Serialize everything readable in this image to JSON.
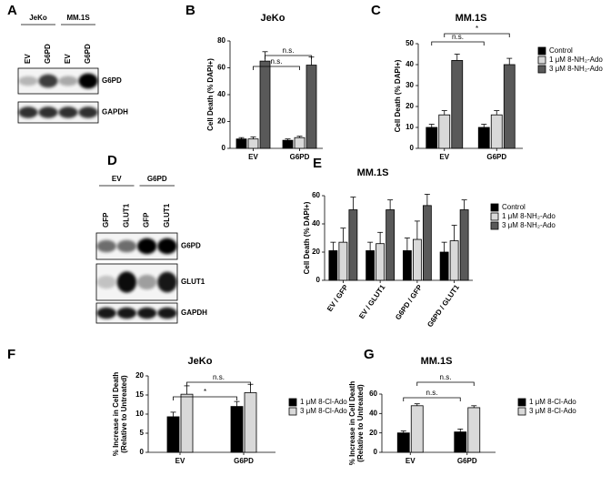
{
  "chart_data": [
    {
      "panel": "B",
      "type": "bar",
      "title": "JeKo",
      "ylabel": "Cell Death (% DAPI+)",
      "categories": [
        "EV",
        "G6PD"
      ],
      "series": [
        {
          "name": "Control",
          "color": "#000000",
          "values": [
            7,
            6
          ],
          "errors": [
            1,
            1
          ]
        },
        {
          "name": "1 μM 8-NH₂-Ado",
          "color": "#d9d9d9",
          "values": [
            7,
            8
          ],
          "errors": [
            1.5,
            1
          ]
        },
        {
          "name": "3 μM 8-NH₂-Ado",
          "color": "#595959",
          "values": [
            65,
            62
          ],
          "errors": [
            7,
            6
          ]
        }
      ],
      "ylim": [
        0,
        80
      ],
      "yticks": [
        0,
        20,
        40,
        60,
        80
      ],
      "annotations": [
        "n.s.",
        "n.s."
      ],
      "legend": "none"
    },
    {
      "panel": "C",
      "type": "bar",
      "title": "MM.1S",
      "ylabel": "Cell Death (% DAPI+)",
      "categories": [
        "EV",
        "G6PD"
      ],
      "series": [
        {
          "name": "Control",
          "color": "#000000",
          "values": [
            10,
            10
          ],
          "errors": [
            1.5,
            1.5
          ]
        },
        {
          "name": "1 μM 8-NH₂-Ado",
          "color": "#d9d9d9",
          "values": [
            16,
            16
          ],
          "errors": [
            2,
            2
          ]
        },
        {
          "name": "3 μM 8-NH₂-Ado",
          "color": "#595959",
          "values": [
            42,
            40
          ],
          "errors": [
            3,
            3
          ]
        }
      ],
      "ylim": [
        0,
        50
      ],
      "yticks": [
        0,
        10,
        20,
        30,
        40,
        50
      ],
      "annotations": [
        "n.s.",
        "*"
      ],
      "legend": "right"
    },
    {
      "panel": "E",
      "type": "bar",
      "title": "MM.1S",
      "ylabel": "Cell Death (% DAPI+)",
      "categories": [
        "EV / GFP",
        "EV / GLUT1",
        "G6PD / GFP",
        "G6PD / GLUT1"
      ],
      "series": [
        {
          "name": "Control",
          "color": "#000000",
          "values": [
            21,
            21,
            21,
            20
          ],
          "errors": [
            6,
            6,
            9,
            7
          ]
        },
        {
          "name": "1 μM 8-NH₂-Ado",
          "color": "#d9d9d9",
          "values": [
            27,
            26,
            29,
            28
          ],
          "errors": [
            10,
            8,
            13,
            11
          ]
        },
        {
          "name": "3 μM 8-NH₂-Ado",
          "color": "#595959",
          "values": [
            50,
            50,
            53,
            50
          ],
          "errors": [
            9,
            7,
            8,
            7
          ]
        }
      ],
      "ylim": [
        0,
        60
      ],
      "yticks": [
        0,
        20,
        40,
        60
      ],
      "annotations": [],
      "legend": "right"
    },
    {
      "panel": "F",
      "type": "bar",
      "title": "JeKo",
      "ylabel": [
        "% Increase in Cell Death",
        "(Relative to Untreated)"
      ],
      "categories": [
        "EV",
        "G6PD"
      ],
      "series": [
        {
          "name": "1 μM 8-Cl-Ado",
          "color": "#000000",
          "values": [
            9.3,
            12
          ],
          "errors": [
            1.2,
            1.3
          ]
        },
        {
          "name": "3 μM 8-Cl-Ado",
          "color": "#d9d9d9",
          "values": [
            15.2,
            15.6
          ],
          "errors": [
            2.2,
            2.2
          ]
        }
      ],
      "ylim": [
        0,
        20
      ],
      "yticks": [
        0,
        5,
        10,
        15,
        20
      ],
      "annotations": [
        "*",
        "n.s."
      ],
      "legend": "right"
    },
    {
      "panel": "G",
      "type": "bar",
      "title": "MM.1S",
      "ylabel": [
        "% Increase in Cell Death",
        "(Relative to Untreated)"
      ],
      "categories": [
        "EV",
        "G6PD"
      ],
      "series": [
        {
          "name": "1 μM 8-Cl-Ado",
          "color": "#000000",
          "values": [
            20,
            21
          ],
          "errors": [
            2,
            3
          ]
        },
        {
          "name": "3 μM 8-Cl-Ado",
          "color": "#d9d9d9",
          "values": [
            48,
            46
          ],
          "errors": [
            2,
            2
          ]
        }
      ],
      "ylim": [
        0,
        60
      ],
      "yticks": [
        0,
        20,
        40,
        60
      ],
      "annotations": [
        "n.s.",
        "n.s."
      ],
      "legend": "right"
    }
  ],
  "blots": [
    {
      "panel": "A",
      "groups": [
        "JeKo",
        "MM.1S"
      ],
      "lanes": [
        "EV",
        "G6PD",
        "EV",
        "G6PD"
      ],
      "bands": [
        "G6PD",
        "GAPDH"
      ]
    },
    {
      "panel": "D",
      "groups": [
        "EV",
        "G6PD"
      ],
      "lanes": [
        "GFP",
        "GLUT1",
        "GFP",
        "GLUT1"
      ],
      "bands": [
        "G6PD",
        "GLUT1",
        "GAPDH"
      ]
    }
  ]
}
